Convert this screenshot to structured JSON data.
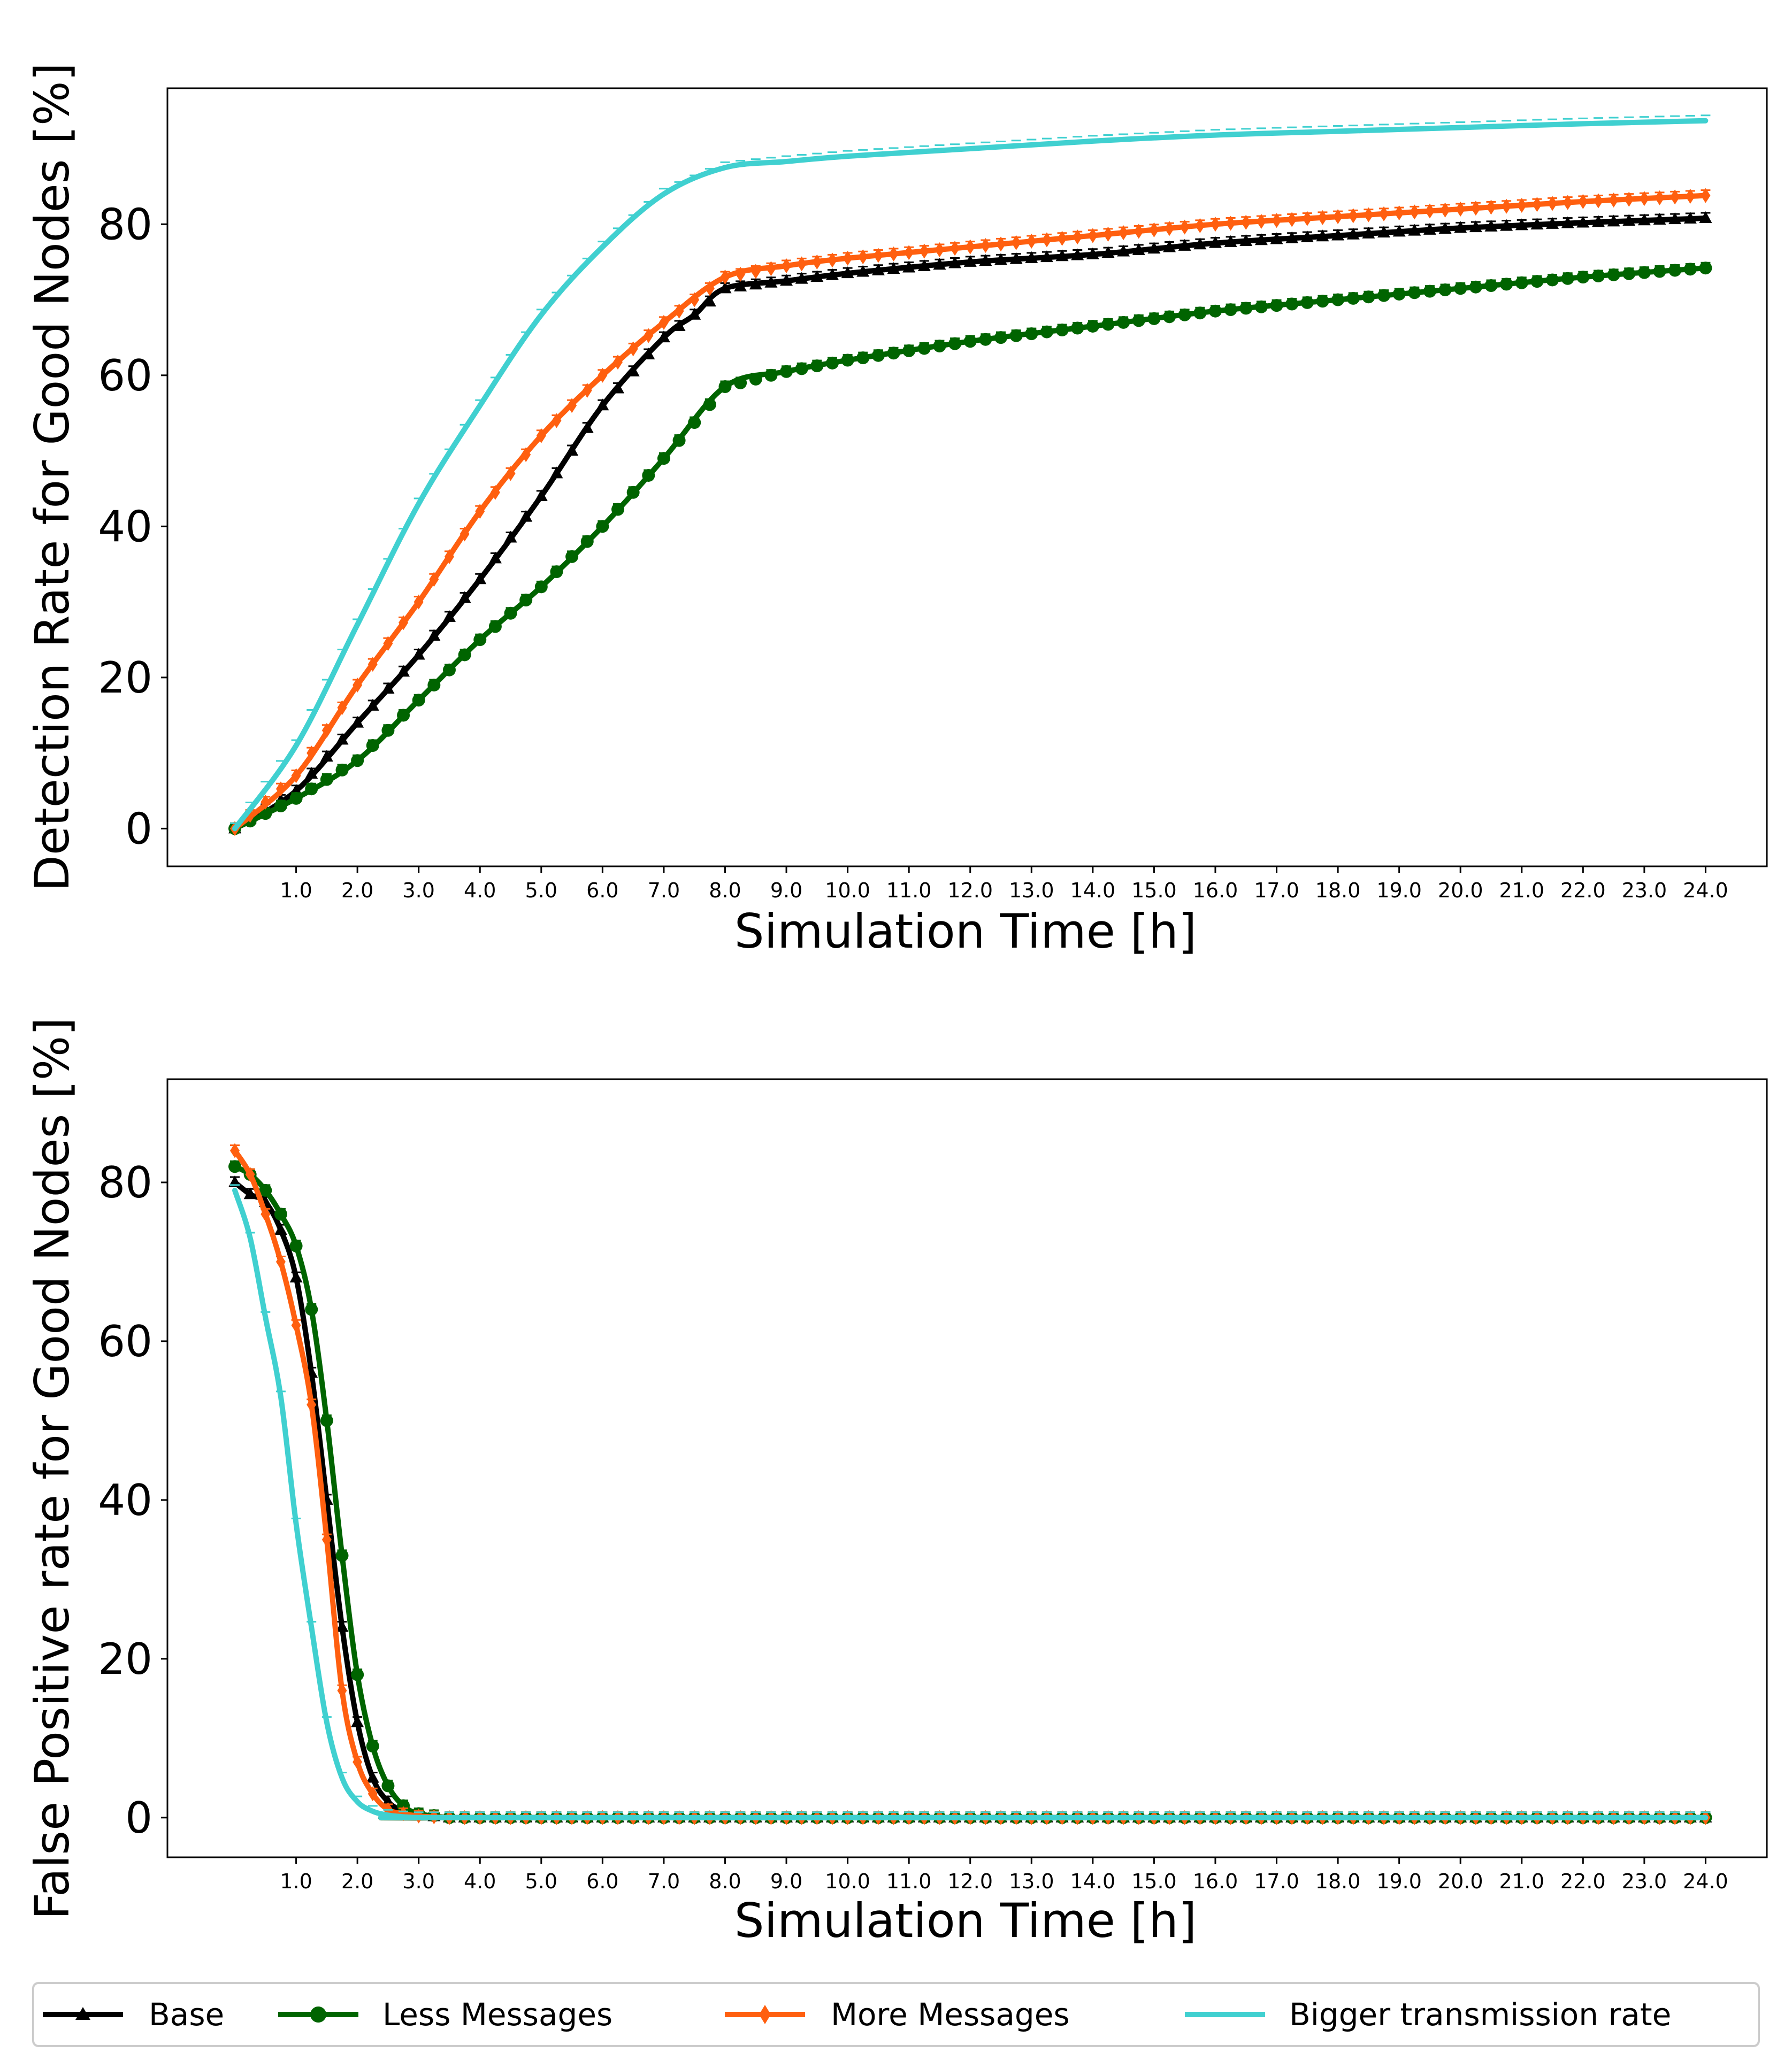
{
  "legend": [
    {
      "name": "Base",
      "color": "#000000",
      "marker": "triangle"
    },
    {
      "name": "Less Messages",
      "color": "#006400",
      "marker": "circle"
    },
    {
      "name": "More Messages",
      "color": "#ff5f0f",
      "marker": "diamond"
    },
    {
      "name": "Bigger transmission rate",
      "color": "#40d0d0",
      "marker": "none"
    }
  ],
  "chart_data": [
    {
      "type": "line",
      "title": "",
      "xlabel": "Simulation Time [h]",
      "ylabel": "Detection Rate for Good Nodes [%]",
      "xlim": [
        -1.1,
        25.0
      ],
      "ylim": [
        -5,
        98
      ],
      "xticks": [
        1.0,
        2.0,
        3.0,
        4.0,
        5.0,
        6.0,
        7.0,
        8.0,
        9.0,
        10.0,
        11.0,
        12.0,
        13.0,
        14.0,
        15.0,
        16.0,
        17.0,
        18.0,
        19.0,
        20.0,
        21.0,
        22.0,
        23.0,
        24.0
      ],
      "xtick_labels": [
        "1.0",
        "2.0",
        "3.0",
        "4.0",
        "5.0",
        "6.0",
        "7.0",
        "8.0",
        "9.0",
        "10.0",
        "11.0",
        "12.0",
        "13.0",
        "14.0",
        "15.0",
        "16.0",
        "17.0",
        "18.0",
        "19.0",
        "20.0",
        "21.0",
        "22.0",
        "23.0",
        "24.0"
      ],
      "yticks": [
        0,
        20,
        40,
        60,
        80
      ],
      "ytick_labels": [
        "0",
        "20",
        "40",
        "60",
        "80"
      ],
      "series": [
        {
          "name": "Base",
          "color": "#000000",
          "marker": "triangle",
          "x": [
            0,
            1,
            2,
            3,
            4,
            5,
            6,
            7,
            7.5,
            8,
            9,
            10,
            12,
            14,
            16,
            18,
            20,
            22,
            24
          ],
          "y": [
            0,
            5,
            14,
            23,
            33,
            44,
            56,
            65,
            68,
            71.5,
            72.5,
            73.5,
            75,
            76,
            77.5,
            78.5,
            79.5,
            80.2,
            80.8
          ]
        },
        {
          "name": "Less Messages",
          "color": "#006400",
          "marker": "circle",
          "x": [
            0,
            1,
            2,
            3,
            4,
            5,
            6,
            7,
            8,
            9,
            10,
            12,
            14,
            16,
            18,
            20,
            22,
            24
          ],
          "y": [
            0,
            4,
            9,
            17,
            25,
            32,
            40,
            49,
            58.5,
            60.5,
            62,
            64.5,
            66.5,
            68.5,
            70,
            71.5,
            73,
            74.2
          ]
        },
        {
          "name": "More Messages",
          "color": "#ff5f0f",
          "marker": "diamond",
          "x": [
            0,
            1,
            2,
            3,
            4,
            5,
            6,
            7,
            8,
            9,
            10,
            12,
            14,
            16,
            18,
            20,
            22,
            24
          ],
          "y": [
            0,
            7,
            19,
            30,
            42,
            52,
            60,
            67,
            73,
            74.5,
            75.5,
            77,
            78.5,
            80,
            81,
            82,
            83,
            83.8
          ]
        },
        {
          "name": "Bigger transmission rate",
          "color": "#40d0d0",
          "marker": "none",
          "x": [
            0,
            1,
            2,
            3,
            4,
            5,
            6,
            7,
            8,
            9,
            10,
            12,
            14,
            16,
            18,
            20,
            22,
            24
          ],
          "y": [
            0,
            11,
            27,
            43,
            56,
            68,
            77,
            84,
            87.5,
            88.3,
            89,
            90,
            91,
            91.8,
            92.3,
            92.8,
            93.3,
            93.7
          ]
        }
      ]
    },
    {
      "type": "line",
      "title": "",
      "xlabel": "Simulation Time [h]",
      "ylabel": "False Positive rate for Good Nodes [%]",
      "xlim": [
        -1.1,
        25.0
      ],
      "ylim": [
        -5,
        93
      ],
      "xticks": [
        1.0,
        2.0,
        3.0,
        4.0,
        5.0,
        6.0,
        7.0,
        8.0,
        9.0,
        10.0,
        11.0,
        12.0,
        13.0,
        14.0,
        15.0,
        16.0,
        17.0,
        18.0,
        19.0,
        20.0,
        21.0,
        22.0,
        23.0,
        24.0
      ],
      "xtick_labels": [
        "1.0",
        "2.0",
        "3.0",
        "4.0",
        "5.0",
        "6.0",
        "7.0",
        "8.0",
        "9.0",
        "10.0",
        "11.0",
        "12.0",
        "13.0",
        "14.0",
        "15.0",
        "16.0",
        "17.0",
        "18.0",
        "19.0",
        "20.0",
        "21.0",
        "22.0",
        "23.0",
        "24.0"
      ],
      "yticks": [
        0,
        20,
        40,
        60,
        80
      ],
      "ytick_labels": [
        "0",
        "20",
        "40",
        "60",
        "80"
      ],
      "series": [
        {
          "name": "Base",
          "color": "#000000",
          "marker": "triangle",
          "x": [
            0,
            0.25,
            0.5,
            0.75,
            1.0,
            1.25,
            1.5,
            1.75,
            2.0,
            2.25,
            2.5,
            2.75,
            3.0,
            3.5,
            4,
            24
          ],
          "y": [
            80,
            78.5,
            77.5,
            74,
            68,
            56,
            40,
            24,
            12,
            5,
            2,
            0.8,
            0.3,
            0,
            0,
            0
          ]
        },
        {
          "name": "Less Messages",
          "color": "#006400",
          "marker": "circle",
          "x": [
            0,
            0.25,
            0.5,
            0.75,
            1.0,
            1.25,
            1.5,
            1.75,
            2.0,
            2.25,
            2.5,
            2.75,
            3.0,
            3.5,
            4,
            24
          ],
          "y": [
            82,
            81,
            79,
            76,
            72,
            64,
            50,
            33,
            18,
            9,
            4,
            1.5,
            0.5,
            0,
            0,
            0
          ]
        },
        {
          "name": "More Messages",
          "color": "#ff5f0f",
          "marker": "diamond",
          "x": [
            0,
            0.25,
            0.5,
            0.75,
            1.0,
            1.25,
            1.5,
            1.75,
            2.0,
            2.25,
            2.5,
            2.75,
            3.0,
            3.5,
            4,
            24
          ],
          "y": [
            84,
            81,
            76,
            70,
            62,
            52,
            35,
            16,
            7,
            3,
            1,
            0.5,
            0.2,
            0,
            0,
            0
          ]
        },
        {
          "name": "Bigger transmission rate",
          "color": "#40d0d0",
          "marker": "none",
          "x": [
            0,
            0.25,
            0.5,
            0.75,
            1.0,
            1.25,
            1.5,
            1.75,
            2.0,
            2.25,
            2.5,
            2.75,
            3.0,
            3.5,
            4,
            24
          ],
          "y": [
            79,
            73,
            63,
            53,
            37,
            24,
            12,
            5,
            2,
            0.8,
            0.3,
            0.1,
            0,
            0,
            0,
            0
          ]
        }
      ]
    }
  ]
}
